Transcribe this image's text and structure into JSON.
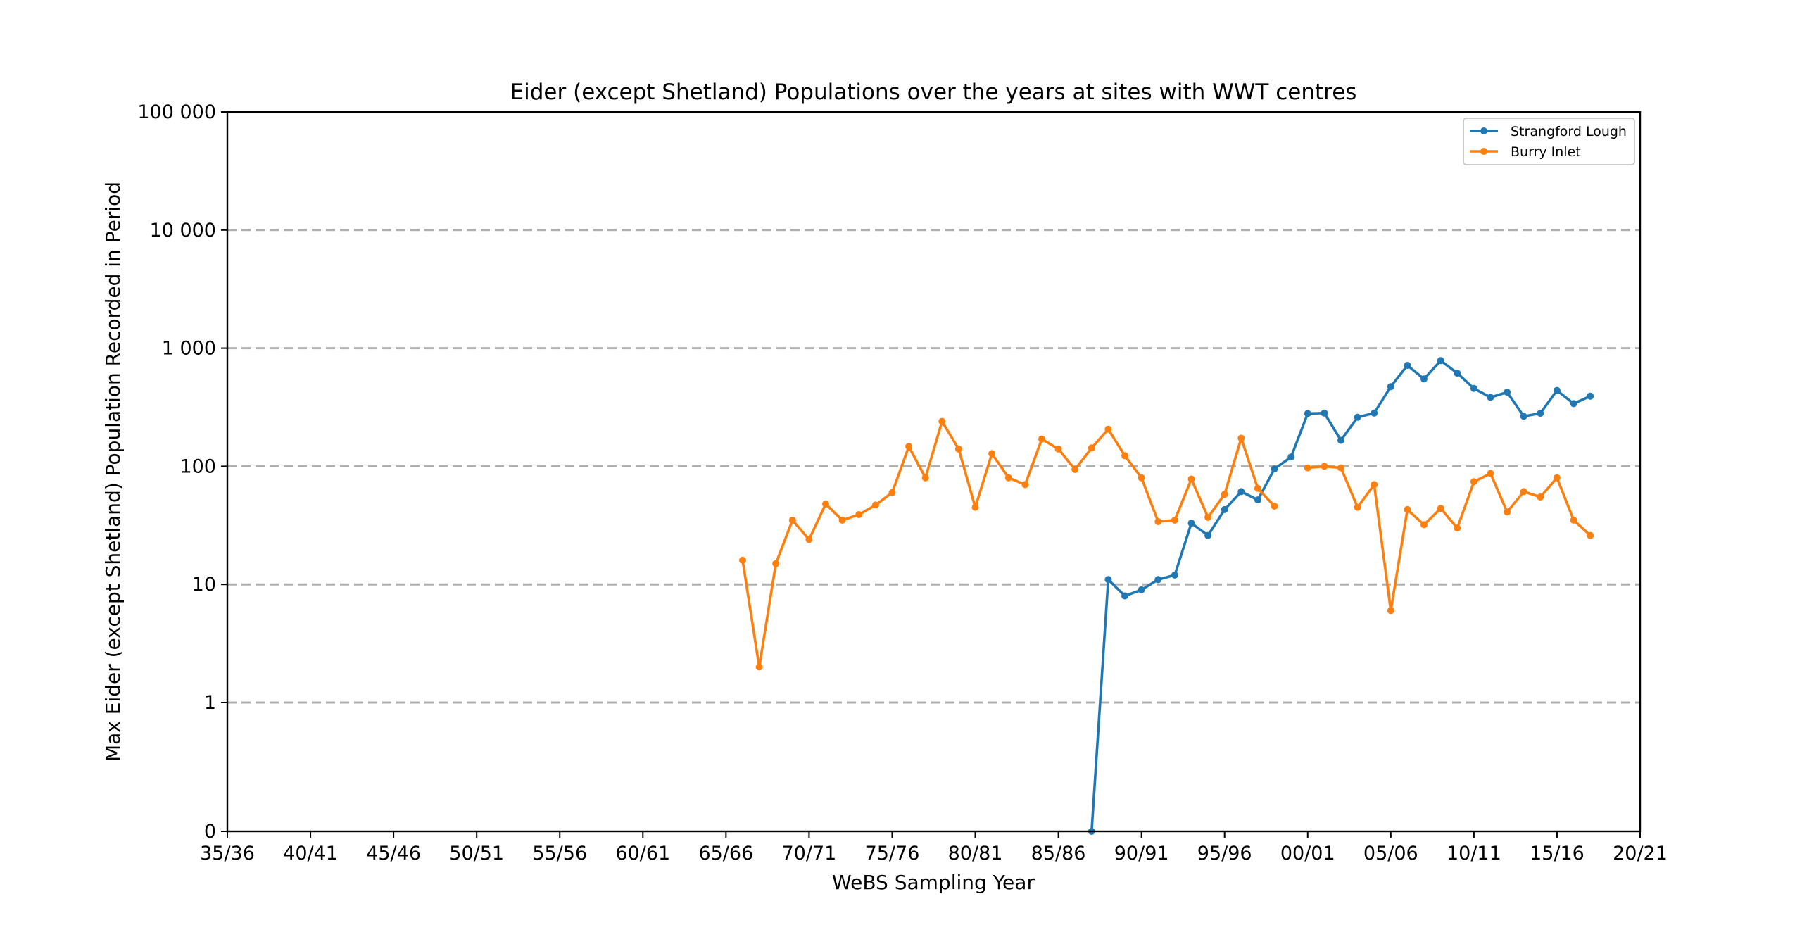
{
  "chart_data": {
    "type": "line",
    "title": "Eider (except Shetland) Populations over the years at sites with WWT centres",
    "xlabel": "WeBS Sampling Year",
    "ylabel": "Max Eider (except Shetland) Population Recorded in Period",
    "x_tick_labels": [
      "35/36",
      "40/41",
      "45/46",
      "50/51",
      "55/56",
      "60/61",
      "65/66",
      "70/71",
      "75/76",
      "80/81",
      "85/86",
      "90/91",
      "95/96",
      "00/01",
      "05/06",
      "10/11",
      "15/16",
      "20/21"
    ],
    "x_tick_years": [
      1935,
      1940,
      1945,
      1950,
      1955,
      1960,
      1965,
      1970,
      1975,
      1980,
      1985,
      1990,
      1995,
      2000,
      2005,
      2010,
      2015,
      2020
    ],
    "xlim": [
      1935,
      2020
    ],
    "y_scale": "symlog",
    "y_ticks": [
      0,
      1,
      10,
      100,
      1000,
      10000,
      100000
    ],
    "y_tick_labels": [
      "0",
      "1",
      "10",
      "100",
      "1 000",
      "10 000",
      "100 000"
    ],
    "ylim": [
      0,
      100000
    ],
    "grid": "horizontal dashed",
    "legend_position": "top-right",
    "series": [
      {
        "name": "Strangford Lough",
        "color": "#1f77b4",
        "segments": [
          [
            [
              1987,
              0
            ],
            [
              1988,
              11
            ],
            [
              1989,
              8
            ],
            [
              1990,
              9
            ],
            [
              1991,
              11
            ],
            [
              1992,
              12
            ],
            [
              1993,
              33
            ],
            [
              1994,
              26
            ],
            [
              1995,
              43
            ],
            [
              1996,
              61
            ],
            [
              1997,
              52
            ],
            [
              1998,
              95
            ],
            [
              1999,
              120
            ],
            [
              2000,
              280
            ],
            [
              2001,
              282
            ],
            [
              2002,
              166
            ],
            [
              2003,
              260
            ],
            [
              2004,
              282
            ],
            [
              2005,
              473
            ],
            [
              2006,
              715
            ],
            [
              2007,
              549
            ],
            [
              2008,
              784
            ],
            [
              2009,
              614
            ],
            [
              2010,
              456
            ],
            [
              2011,
              383
            ],
            [
              2012,
              424
            ],
            [
              2013,
              265
            ],
            [
              2014,
              281
            ],
            [
              2015,
              439
            ],
            [
              2016,
              339
            ],
            [
              2017,
              393
            ]
          ]
        ]
      },
      {
        "name": "Burry Inlet",
        "color": "#ff7f0e",
        "segments": [
          [
            [
              1966,
              16
            ],
            [
              1967,
              2
            ],
            [
              1968,
              15
            ],
            [
              1969,
              35
            ],
            [
              1970,
              24
            ],
            [
              1971,
              48
            ],
            [
              1972,
              35
            ],
            [
              1973,
              39
            ],
            [
              1974,
              47
            ],
            [
              1975,
              60
            ],
            [
              1976,
              147
            ],
            [
              1977,
              80
            ],
            [
              1978,
              240
            ],
            [
              1979,
              140
            ],
            [
              1980,
              45
            ],
            [
              1981,
              128
            ],
            [
              1982,
              80
            ],
            [
              1983,
              70
            ],
            [
              1984,
              170
            ],
            [
              1985,
              140
            ],
            [
              1986,
              94
            ],
            [
              1987,
              143
            ],
            [
              1988,
              206
            ],
            [
              1989,
              123
            ],
            [
              1990,
              80
            ],
            [
              1991,
              34
            ],
            [
              1992,
              35
            ],
            [
              1993,
              78
            ],
            [
              1994,
              37
            ],
            [
              1995,
              58
            ],
            [
              1996,
              173
            ],
            [
              1997,
              65
            ],
            [
              1998,
              46
            ]
          ],
          [
            [
              2000,
              97
            ],
            [
              2001,
              100
            ],
            [
              2002,
              97
            ],
            [
              2003,
              45
            ],
            [
              2004,
              70
            ],
            [
              2005,
              6
            ],
            [
              2006,
              43
            ],
            [
              2007,
              32
            ],
            [
              2008,
              44
            ],
            [
              2009,
              30
            ],
            [
              2010,
              74
            ],
            [
              2011,
              87
            ],
            [
              2012,
              41
            ],
            [
              2013,
              61
            ],
            [
              2014,
              55
            ],
            [
              2015,
              80
            ],
            [
              2016,
              35
            ],
            [
              2017,
              26
            ]
          ]
        ]
      }
    ]
  }
}
